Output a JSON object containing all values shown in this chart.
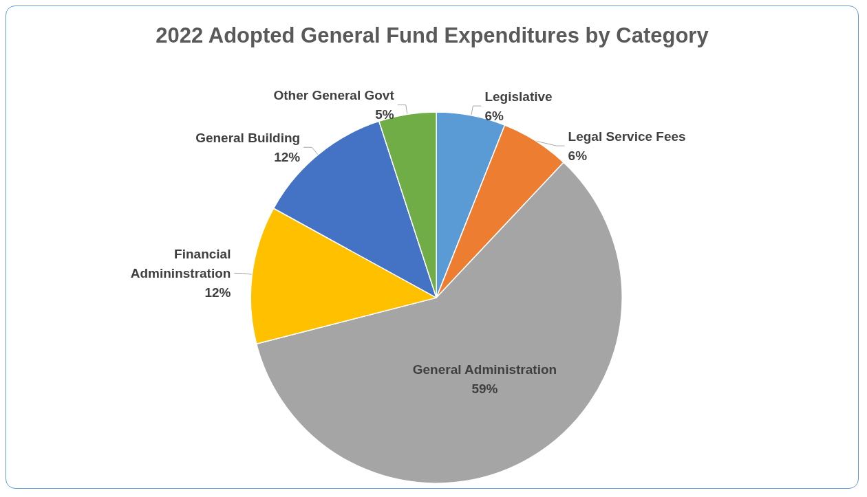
{
  "chart_data": {
    "type": "pie",
    "title": "2022 Adopted General Fund Expenditures by Category",
    "categories": [
      "Legislative",
      "Legal Service Fees",
      "General Administration",
      "Financial\nAdmininstration",
      "General Building",
      "Other General Govt"
    ],
    "values": [
      6,
      6,
      59,
      12,
      12,
      5
    ],
    "value_labels": [
      "6%",
      "6%",
      "59%",
      "12%",
      "12%",
      "5%"
    ],
    "colors": [
      "#5b9bd5",
      "#ed7d31",
      "#a5a5a5",
      "#ffc000",
      "#4472c4",
      "#70ad47"
    ]
  }
}
